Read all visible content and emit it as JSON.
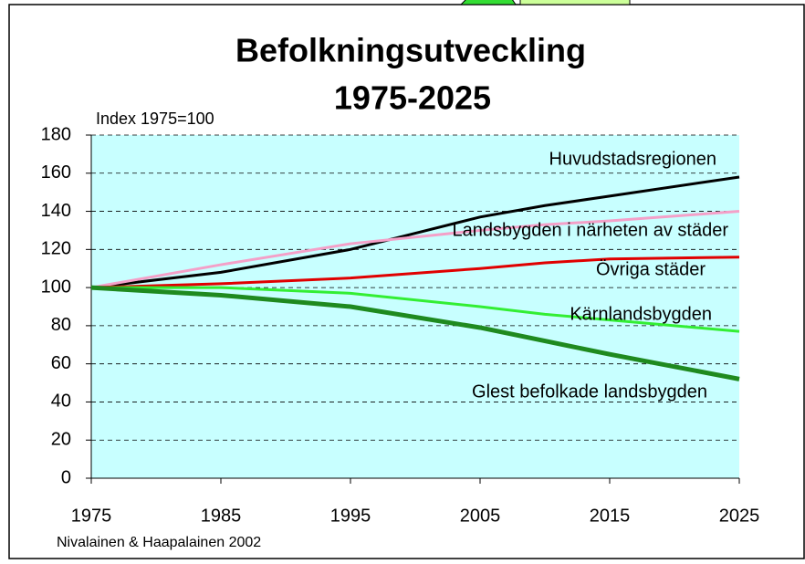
{
  "chart_data": {
    "type": "line",
    "title": [
      "Befolkningsutveckling",
      "1975-2025"
    ],
    "y_axis_label": "Index 1975=100",
    "source": "Nivalainen & Haapalainen 2002",
    "x": [
      1975,
      1985,
      1995,
      2005,
      2010,
      2015,
      2025
    ],
    "series": [
      {
        "name": "Huvudstadsregionen",
        "color": "#000000",
        "values": [
          100,
          108,
          120,
          137,
          143,
          148,
          158
        ]
      },
      {
        "name": "Landsbygden i närheten av städer",
        "color": "#f4a0c8",
        "values": [
          100,
          112,
          123,
          130,
          133,
          135,
          140
        ]
      },
      {
        "name": "Övriga städer",
        "color": "#e00000",
        "values": [
          100,
          102,
          105,
          110,
          113,
          115,
          116
        ]
      },
      {
        "name": "Kärnlandsbygden",
        "color": "#33ee33",
        "values": [
          100,
          100,
          97,
          90,
          86,
          83,
          77
        ]
      },
      {
        "name": "Glest befolkade landsbygden",
        "color": "#1f8a1f",
        "values": [
          100,
          96,
          90,
          79,
          72,
          65,
          52
        ]
      }
    ],
    "xlim": [
      1975,
      2025
    ],
    "xticks": [
      1975,
      1985,
      1995,
      2005,
      2015,
      2025
    ],
    "ylim": [
      0,
      180
    ],
    "yticks": [
      0,
      20,
      40,
      60,
      80,
      100,
      120,
      140,
      160,
      180
    ],
    "grid": true,
    "plot_background": "#c8ffff"
  }
}
